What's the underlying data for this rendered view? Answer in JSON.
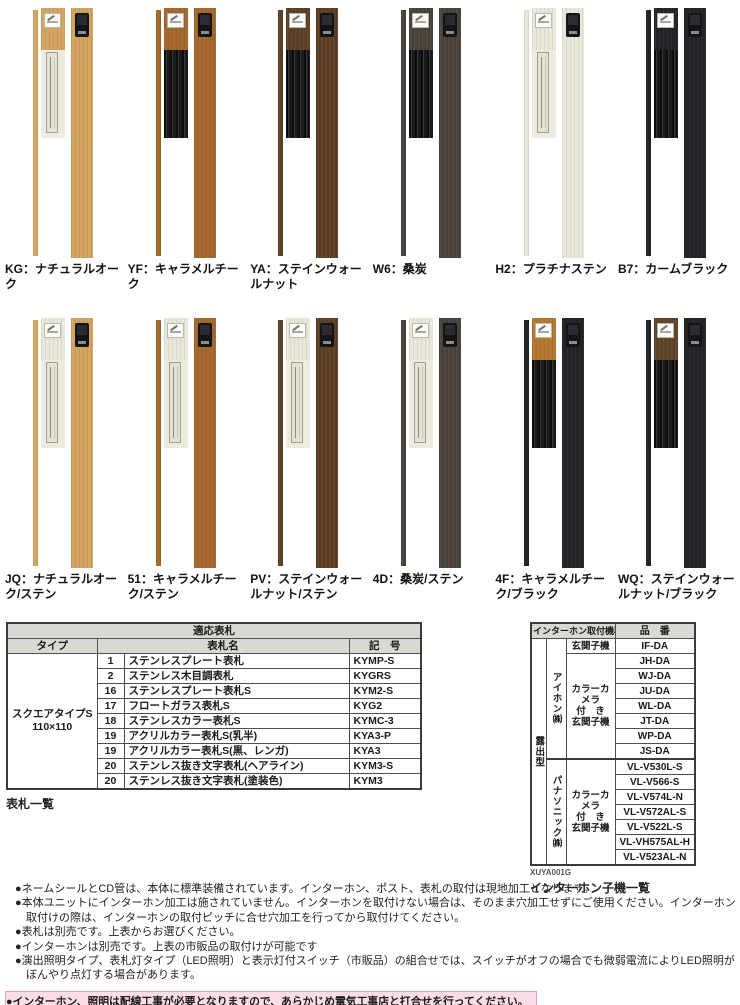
{
  "products": {
    "row1": [
      {
        "code": "KG",
        "name": "ナチュラルオーク",
        "label": "KG：ナチュラルオーク",
        "front": "panel",
        "colors": {
          "pillar": "#d2a45f",
          "strip": "#d2a45f",
          "front_top": "#d2a45f"
        }
      },
      {
        "code": "YF",
        "name": "キャラメルチーク",
        "label": "YF：キャラメルチーク",
        "front": "slats",
        "colors": {
          "pillar": "#a5672e",
          "strip": "#a5672e",
          "front_top": "#a5672e"
        }
      },
      {
        "code": "YA",
        "name": "ステインウォールナット",
        "label": "YA：ステインウォールナット",
        "front": "slats",
        "colors": {
          "pillar": "#5b4026",
          "strip": "#5b4026",
          "front_top": "#5b4026"
        }
      },
      {
        "code": "W6",
        "name": "桑炭",
        "label": "W6：桑炭",
        "front": "slats",
        "colors": {
          "pillar": "#4a433c",
          "strip": "#4a433c",
          "front_top": "#4a433c"
        }
      },
      {
        "code": "H2",
        "name": "プラチナステン",
        "label": "H2：プラチナステン",
        "front": "panel",
        "colors": {
          "pillar": "#e9e6db",
          "strip": "#e9e6db",
          "front_top": "#e9e6db"
        }
      },
      {
        "code": "B7",
        "name": "カームブラック",
        "label": "B7：カームブラック",
        "front": "slats",
        "colors": {
          "pillar": "#232226",
          "strip": "#232226",
          "front_top": "#232226"
        }
      }
    ],
    "row2": [
      {
        "code": "JQ",
        "name": "ナチュラルオーク/ステン",
        "label": "JQ：ナチュラルオーク/ステン",
        "front": "panel",
        "colors": {
          "pillar": "#d2a45f",
          "strip": "#d2a45f",
          "front_top": "#e9e6db"
        }
      },
      {
        "code": "51",
        "name": "キャラメルチーク/ステン",
        "label": "51：キャラメルチーク/ステン",
        "front": "panel",
        "colors": {
          "pillar": "#a5672e",
          "strip": "#a5672e",
          "front_top": "#e9e6db"
        }
      },
      {
        "code": "PV",
        "name": "ステインウォールナット/ステン",
        "label": "PV：ステインウォールナット/ステン",
        "front": "panel",
        "colors": {
          "pillar": "#5b4026",
          "strip": "#5b4026",
          "front_top": "#e9e6db"
        }
      },
      {
        "code": "4D",
        "name": "桑炭/ステン",
        "label": "4D：桑炭/ステン",
        "front": "panel",
        "colors": {
          "pillar": "#4a433c",
          "strip": "#4a433c",
          "front_top": "#e9e6db"
        }
      },
      {
        "code": "4F",
        "name": "キャラメルチーク/ブラック",
        "label": "4F：キャラメルチーク/ブラック",
        "front": "slats",
        "colors": {
          "pillar": "#232226",
          "strip": "#232226",
          "front_top": "#b5772f"
        }
      },
      {
        "code": "WQ",
        "name": "ステインウォールナット/ブラック",
        "label": "WQ：ステインウォールナット/ブラック",
        "front": "slats",
        "colors": {
          "pillar": "#232226",
          "strip": "#232226",
          "front_top": "#5f442b"
        }
      }
    ]
  },
  "nameplate_table": {
    "title": "適応表札",
    "col_type": "タイプ",
    "col_name": "表札名",
    "col_code": "記　号",
    "type_label": "スクエアタイプS",
    "type_size": "110×110",
    "caption": "表札一覧",
    "rows": [
      {
        "no": "1",
        "name": "ステンレスプレート表札",
        "code": "KYMP-S"
      },
      {
        "no": "2",
        "name": "ステンレス木目調表札",
        "code": "KYGRS"
      },
      {
        "no": "16",
        "name": "ステンレスプレート表札S",
        "code": "KYM2-S"
      },
      {
        "no": "17",
        "name": "フロートガラス表札S",
        "code": "KYG2"
      },
      {
        "no": "18",
        "name": "ステンレスカラー表札S",
        "code": "KYMC-3"
      },
      {
        "no": "19",
        "name": "アクリルカラー表札S(乳半)",
        "code": "KYA3-P"
      },
      {
        "no": "19",
        "name": "アクリルカラー表札S(黒、レンガ)",
        "code": "KYA3"
      },
      {
        "no": "20",
        "name": "ステンレス抜き文字表札(ヘアライン)",
        "code": "KYM3-S"
      },
      {
        "no": "20",
        "name": "ステンレス抜き文字表札(塗装色)",
        "code": "KYM3"
      }
    ]
  },
  "intercom_table": {
    "title": "インターホン取付機種",
    "col_part": "品　番",
    "mount_type": "露出型",
    "code_note": "XUYA001G",
    "caption": "インターホン子機一覧",
    "groups": [
      {
        "brand": "アイホン㈱",
        "sections": [
          {
            "label": [
              "玄関子機"
            ],
            "models": [
              "IF-DA"
            ]
          },
          {
            "label": [
              "カラーカメラ",
              "付　き",
              "玄関子機"
            ],
            "models": [
              "JH-DA",
              "WJ-DA",
              "JU-DA",
              "WL-DA",
              "JT-DA",
              "WP-DA",
              "JS-DA"
            ]
          }
        ]
      },
      {
        "brand": "パナソニック㈱",
        "sections": [
          {
            "label": [
              "カラーカメラ",
              "付　き",
              "玄関子機"
            ],
            "models": [
              "VL-V530L-S",
              "VL-V566-S",
              "VL-V574L-N",
              "VL-V572AL-S",
              "VL-V522L-S",
              "VL-VH575AL-H",
              "VL-V523AL-N"
            ]
          }
        ]
      }
    ]
  },
  "notes": [
    "●ネームシールとCD管は、本体に標準装備されています。インターホン、ポスト、表札の取付は現地加工となります。",
    "●本体ユニットにインターホン加工は施されていません。インターホンを取付けない場合は、そのまま穴加工せずにご使用ください。インターホン取付けの際は、インターホンの取付ピッチに合せ穴加工を行ってから取付けてください。",
    "●表札は別売です。上表からお選びください。",
    "●インターホンは別売です。上表の市販品の取付けが可能です",
    "●演出照明タイプ、表札灯タイプ（LED照明）と表示灯付スイッチ（市販品）の組合せでは、スイッチがオフの場合でも微弱電流によりLED照明がぼんやり点灯する場合があります。"
  ],
  "warning": "●インターホン、照明は配線工事が必要となりますので、あらかじめ電気工事店と打合せを行ってください。",
  "ui_colors": {
    "header_gray": "#d9d8d2",
    "warning_bg": "#fbdde9",
    "warning_border": "#ea9cbd",
    "table_border": "#3a3a3a"
  }
}
